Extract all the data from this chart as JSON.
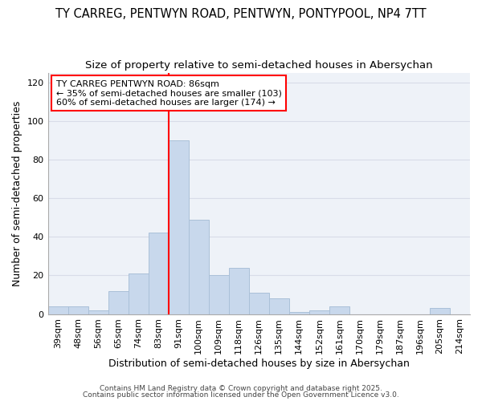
{
  "title_line1": "TY CARREG, PENTWYN ROAD, PENTWYN, PONTYPOOL, NP4 7TT",
  "title_line2": "Size of property relative to semi-detached houses in Abersychan",
  "xlabel": "Distribution of semi-detached houses by size in Abersychan",
  "ylabel": "Number of semi-detached properties",
  "categories": [
    "39sqm",
    "48sqm",
    "56sqm",
    "65sqm",
    "74sqm",
    "83sqm",
    "91sqm",
    "100sqm",
    "109sqm",
    "118sqm",
    "126sqm",
    "135sqm",
    "144sqm",
    "152sqm",
    "161sqm",
    "170sqm",
    "179sqm",
    "187sqm",
    "196sqm",
    "205sqm",
    "214sqm"
  ],
  "values": [
    4,
    4,
    2,
    12,
    21,
    42,
    90,
    49,
    20,
    24,
    11,
    8,
    1,
    2,
    4,
    0,
    0,
    0,
    0,
    3,
    0
  ],
  "bar_color": "#c8d8ec",
  "bar_edge_color": "#aac0d8",
  "vline_color": "red",
  "annotation_title": "TY CARREG PENTWYN ROAD: 86sqm",
  "annotation_line2": "← 35% of semi-detached houses are smaller (103)",
  "annotation_line3": "60% of semi-detached houses are larger (174) →",
  "annotation_box_color": "white",
  "annotation_box_edge_color": "red",
  "ylim": [
    0,
    125
  ],
  "yticks": [
    0,
    20,
    40,
    60,
    80,
    100,
    120
  ],
  "grid_color": "#d8dce8",
  "bg_color": "#ffffff",
  "plot_bg_color": "#eef2f8",
  "footer_line1": "Contains HM Land Registry data © Crown copyright and database right 2025.",
  "footer_line2": "Contains public sector information licensed under the Open Government Licence v3.0.",
  "title_fontsize": 10.5,
  "subtitle_fontsize": 9.5,
  "axis_label_fontsize": 9,
  "tick_fontsize": 8,
  "annotation_fontsize": 8,
  "footer_fontsize": 6.5
}
